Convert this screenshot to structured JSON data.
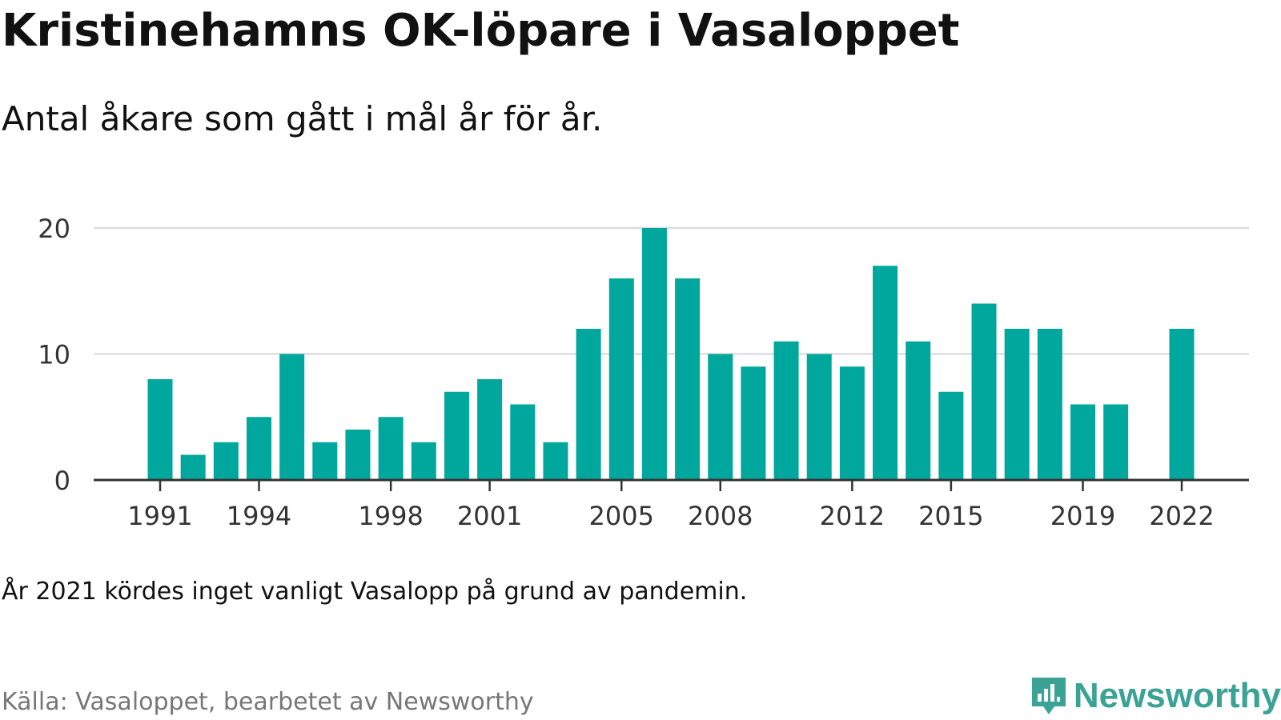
{
  "title": "Kristinehamns OK-löpare i Vasaloppet",
  "subtitle": "Antal åkare som gått i mål år för år.",
  "note": "År 2021 kördes inget vanligt Vasalopp på grund av pandemin.",
  "source": "Källa: Vasaloppet, bearbetet av Newsworthy",
  "logo": {
    "text": "Newsworthy",
    "icon": "newsworthy-chart-icon",
    "color": "#3aa395"
  },
  "chart_data": {
    "type": "bar",
    "categories": [
      "1991",
      "1992",
      "1993",
      "1994",
      "1995",
      "1996",
      "1997",
      "1998",
      "1999",
      "2000",
      "2001",
      "2002",
      "2003",
      "2004",
      "2005",
      "2006",
      "2007",
      "2008",
      "2009",
      "2010",
      "2011",
      "2012",
      "2013",
      "2014",
      "2015",
      "2016",
      "2017",
      "2018",
      "2019",
      "2020",
      "2021",
      "2022"
    ],
    "values": [
      8,
      2,
      3,
      5,
      10,
      3,
      4,
      5,
      3,
      7,
      8,
      6,
      3,
      12,
      16,
      20,
      16,
      10,
      9,
      11,
      10,
      9,
      17,
      11,
      7,
      14,
      12,
      12,
      6,
      6,
      0,
      12
    ],
    "x_tick_labels": [
      "1991",
      "1994",
      "1998",
      "2001",
      "2005",
      "2008",
      "2012",
      "2015",
      "2019",
      "2022"
    ],
    "y_ticks": [
      0,
      10,
      20
    ],
    "ylim": [
      0,
      20
    ],
    "grid": true,
    "bar_color": "#00a79d",
    "grid_color": "#dddddd",
    "axis_color": "#333333",
    "title": "",
    "xlabel": "",
    "ylabel": ""
  }
}
